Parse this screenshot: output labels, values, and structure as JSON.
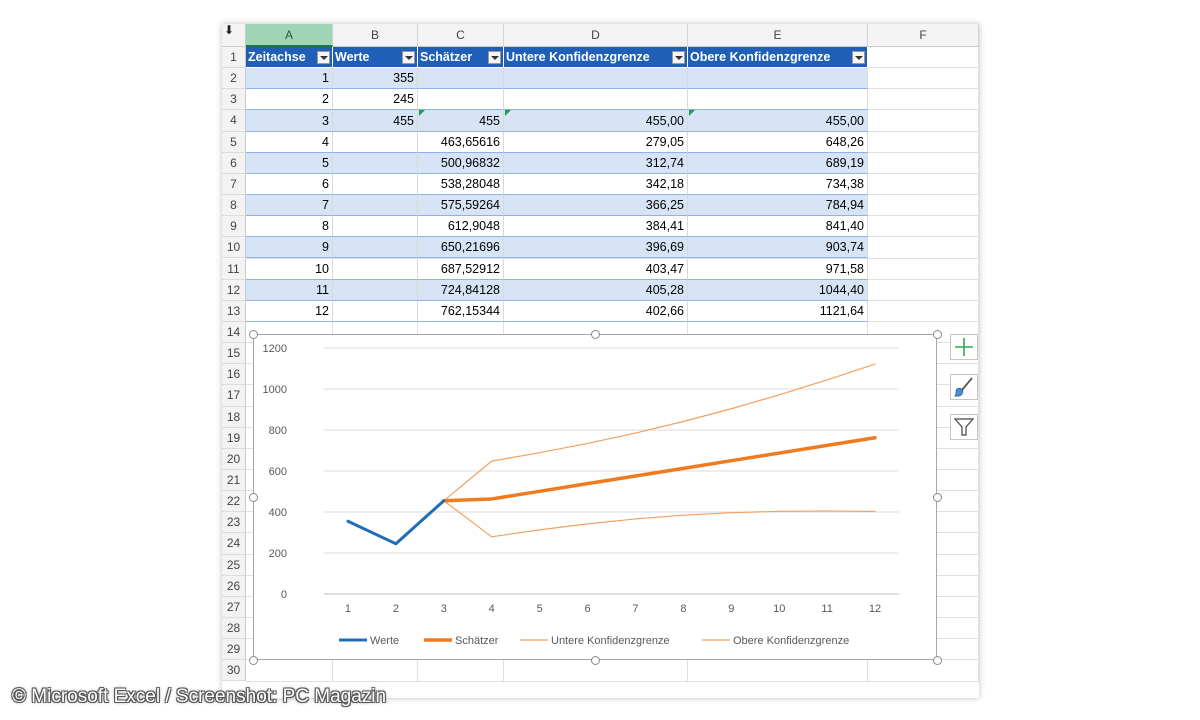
{
  "columns": [
    "A",
    "B",
    "C",
    "D",
    "E",
    "F"
  ],
  "row_numbers": [
    "1",
    "2",
    "3",
    "4",
    "5",
    "6",
    "7",
    "8",
    "9",
    "10",
    "11",
    "12",
    "13",
    "14",
    "15",
    "16",
    "17",
    "18",
    "19",
    "20",
    "21",
    "22",
    "23",
    "24",
    "25",
    "26",
    "27",
    "28",
    "29",
    "30"
  ],
  "table": {
    "headers": [
      "Zeitachse",
      "Werte",
      "Schätzer",
      "Untere Konfidenzgrenze",
      "Obere Konfidenzgrenze"
    ],
    "rows": [
      [
        "1",
        "355",
        "",
        "",
        ""
      ],
      [
        "2",
        "245",
        "",
        "",
        ""
      ],
      [
        "3",
        "455",
        "455",
        "455,00",
        "455,00"
      ],
      [
        "4",
        "",
        "463,65616",
        "279,05",
        "648,26"
      ],
      [
        "5",
        "",
        "500,96832",
        "312,74",
        "689,19"
      ],
      [
        "6",
        "",
        "538,28048",
        "342,18",
        "734,38"
      ],
      [
        "7",
        "",
        "575,59264",
        "366,25",
        "784,94"
      ],
      [
        "8",
        "",
        "612,9048",
        "384,41",
        "841,40"
      ],
      [
        "9",
        "",
        "650,21696",
        "396,69",
        "903,74"
      ],
      [
        "10",
        "",
        "687,52912",
        "403,47",
        "971,58"
      ],
      [
        "11",
        "",
        "724,84128",
        "405,28",
        "1044,40"
      ],
      [
        "12",
        "",
        "762,15344",
        "402,66",
        "1121,64"
      ]
    ]
  },
  "chart_data": {
    "type": "line",
    "x": [
      1,
      2,
      3,
      4,
      5,
      6,
      7,
      8,
      9,
      10,
      11,
      12
    ],
    "ylim": [
      0,
      1200
    ],
    "yticks": [
      0,
      200,
      400,
      600,
      800,
      1000,
      1200
    ],
    "grid": true,
    "legend_position": "bottom",
    "series": [
      {
        "name": "Werte",
        "color": "#1f6cb8",
        "width": 3,
        "values": [
          355,
          245,
          455,
          null,
          null,
          null,
          null,
          null,
          null,
          null,
          null,
          null
        ]
      },
      {
        "name": "Schätzer",
        "color": "#f07a1f",
        "width": 3.5,
        "values": [
          null,
          null,
          455,
          463.65616,
          500.96832,
          538.28048,
          575.59264,
          612.9048,
          650.21696,
          687.52912,
          724.84128,
          762.15344
        ]
      },
      {
        "name": "Untere Konfidenzgrenze",
        "color": "#f4a060",
        "width": 1.2,
        "values": [
          null,
          null,
          455,
          279.05,
          312.74,
          342.18,
          366.25,
          384.41,
          396.69,
          403.47,
          405.28,
          402.66
        ]
      },
      {
        "name": "Obere Konfidenzgrenze",
        "color": "#f4a060",
        "width": 1.2,
        "values": [
          null,
          null,
          455,
          648.26,
          689.19,
          734.38,
          784.94,
          841.4,
          903.74,
          971.58,
          1044.4,
          1121.64
        ]
      }
    ]
  },
  "chart_tools": {
    "add_element_icon": "plus-icon",
    "style_icon": "brush-icon",
    "filter_icon": "funnel-icon"
  },
  "caption": "© Microsoft Excel / Screenshot: PC Magazin"
}
